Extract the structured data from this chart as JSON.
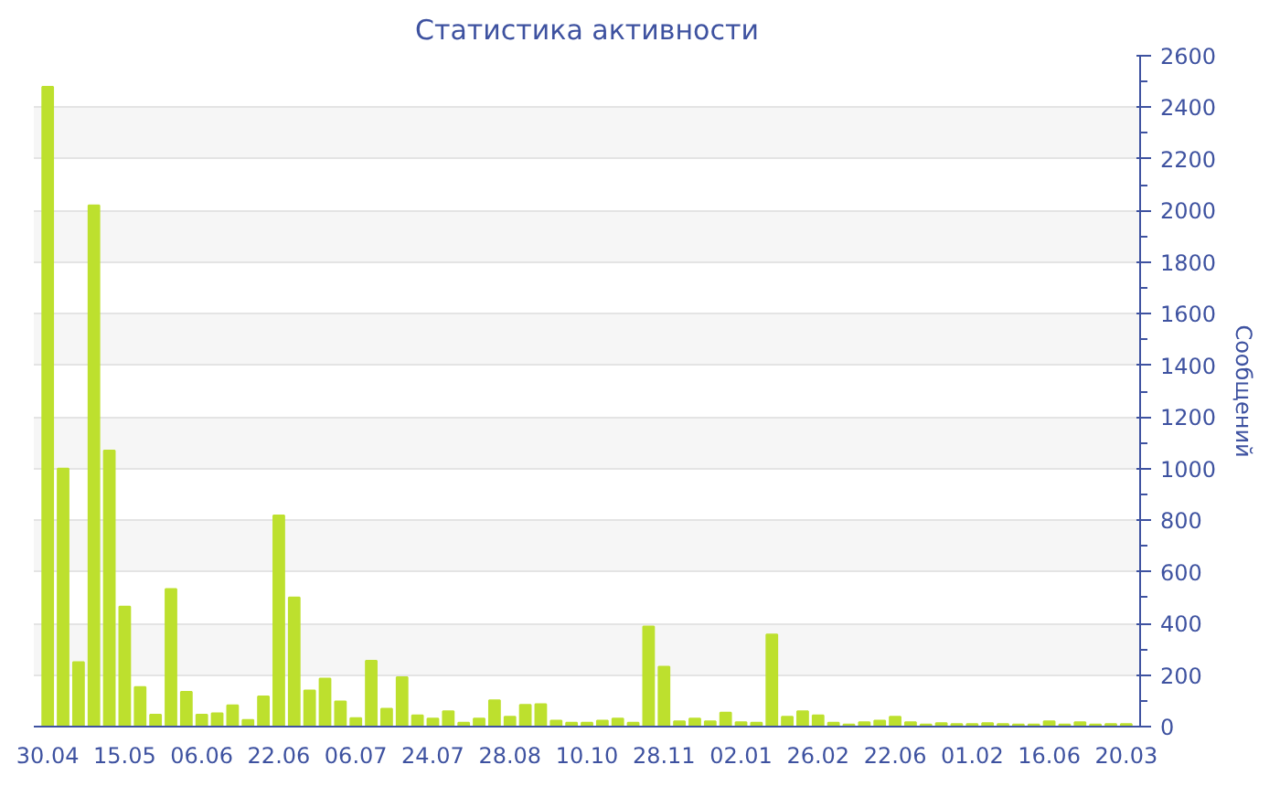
{
  "chart_data": {
    "type": "bar",
    "title": "Статистика активности",
    "ylabel": "Сообщений",
    "categories": [
      "30.04",
      null,
      null,
      null,
      null,
      "15.05",
      null,
      null,
      null,
      null,
      "06.06",
      null,
      null,
      null,
      null,
      "22.06",
      null,
      null,
      null,
      null,
      "06.07",
      null,
      null,
      null,
      null,
      "24.07",
      null,
      null,
      null,
      null,
      "28.08",
      null,
      null,
      null,
      null,
      "10.10",
      null,
      null,
      null,
      null,
      "28.11",
      null,
      null,
      null,
      null,
      "02.01",
      null,
      null,
      null,
      null,
      "26.02",
      null,
      null,
      null,
      null,
      "22.06",
      null,
      null,
      null,
      null,
      "01.02",
      null,
      null,
      null,
      null,
      "16.06",
      null,
      null,
      null,
      null,
      "20.03"
    ],
    "values": [
      2480,
      1000,
      250,
      2020,
      1070,
      465,
      153,
      46,
      533,
      135,
      46,
      51,
      82,
      26,
      117,
      818,
      500,
      140,
      186,
      97,
      33,
      255,
      69,
      191,
      43,
      31,
      59,
      15,
      31,
      102,
      38,
      84,
      87,
      23,
      15,
      15,
      23,
      31,
      15,
      388,
      232,
      20,
      31,
      20,
      54,
      17,
      15,
      357,
      38,
      59,
      43,
      15,
      8,
      17,
      23,
      38,
      17,
      8,
      13,
      10,
      10,
      13,
      10,
      8,
      8,
      20,
      8,
      17,
      8,
      10,
      10
    ],
    "color": "#bde02e",
    "ylim": [
      0,
      2600
    ],
    "yticks": [
      0,
      200,
      400,
      600,
      800,
      1000,
      1200,
      1400,
      1600,
      1800,
      2000,
      2200,
      2400,
      2600
    ],
    "grid": "y"
  }
}
